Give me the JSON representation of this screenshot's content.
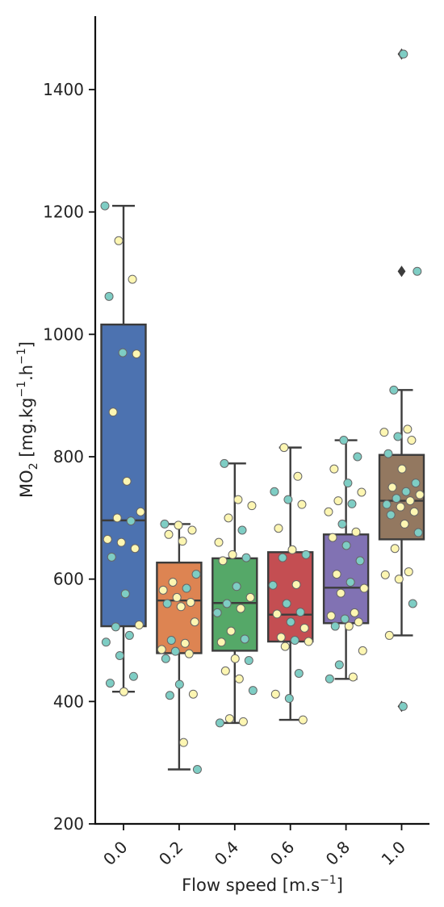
{
  "chart_data": {
    "type": "box",
    "xlabel": "Flow speed [m.s",
    "xlabel_sup": "−1",
    "xlabel_suffix": "]",
    "ylabel_prefix": "MO",
    "ylabel_sub": "2",
    "ylabel_mid1": " [mg.kg",
    "ylabel_sup1": "−1",
    "ylabel_mid2": ".h",
    "ylabel_sup2": "−1",
    "ylabel_suffix": "]",
    "ylim": [
      200,
      1520
    ],
    "yticks": [
      200,
      400,
      600,
      800,
      1000,
      1200,
      1400
    ],
    "categories": [
      "0.0",
      "0.2",
      "0.4",
      "0.6",
      "0.8",
      "1.0"
    ],
    "point_colors": {
      "teal": "#7ecdc4",
      "yellow": "#fdf6b2"
    },
    "boxes": [
      {
        "category": "0.0",
        "color": "#4c72b0",
        "q1": 523,
        "median": 696,
        "q3": 1016,
        "whisker_low": 416,
        "whisker_high": 1210,
        "outliers": [],
        "points": [
          {
            "y": 1210,
            "c": "teal"
          },
          {
            "y": 1153,
            "c": "yellow"
          },
          {
            "y": 1090,
            "c": "yellow"
          },
          {
            "y": 1062,
            "c": "teal"
          },
          {
            "y": 970,
            "c": "teal"
          },
          {
            "y": 968,
            "c": "yellow"
          },
          {
            "y": 873,
            "c": "yellow"
          },
          {
            "y": 760,
            "c": "yellow"
          },
          {
            "y": 710,
            "c": "yellow"
          },
          {
            "y": 700,
            "c": "yellow"
          },
          {
            "y": 695,
            "c": "teal"
          },
          {
            "y": 665,
            "c": "yellow"
          },
          {
            "y": 660,
            "c": "yellow"
          },
          {
            "y": 650,
            "c": "yellow"
          },
          {
            "y": 636,
            "c": "teal"
          },
          {
            "y": 576,
            "c": "teal"
          },
          {
            "y": 525,
            "c": "yellow"
          },
          {
            "y": 522,
            "c": "teal"
          },
          {
            "y": 508,
            "c": "teal"
          },
          {
            "y": 497,
            "c": "teal"
          },
          {
            "y": 475,
            "c": "teal"
          },
          {
            "y": 441,
            "c": "teal"
          },
          {
            "y": 430,
            "c": "teal"
          },
          {
            "y": 416,
            "c": "yellow"
          }
        ]
      },
      {
        "category": "0.2",
        "color": "#dd8452",
        "q1": 479,
        "median": 565,
        "q3": 627,
        "whisker_low": 289,
        "whisker_high": 690,
        "outliers": [],
        "points": [
          {
            "y": 690,
            "c": "teal"
          },
          {
            "y": 688,
            "c": "yellow"
          },
          {
            "y": 680,
            "c": "yellow"
          },
          {
            "y": 673,
            "c": "yellow"
          },
          {
            "y": 662,
            "c": "yellow"
          },
          {
            "y": 608,
            "c": "teal"
          },
          {
            "y": 595,
            "c": "yellow"
          },
          {
            "y": 585,
            "c": "teal"
          },
          {
            "y": 582,
            "c": "yellow"
          },
          {
            "y": 570,
            "c": "yellow"
          },
          {
            "y": 562,
            "c": "yellow"
          },
          {
            "y": 560,
            "c": "teal"
          },
          {
            "y": 555,
            "c": "yellow"
          },
          {
            "y": 530,
            "c": "yellow"
          },
          {
            "y": 500,
            "c": "teal"
          },
          {
            "y": 495,
            "c": "yellow"
          },
          {
            "y": 485,
            "c": "yellow"
          },
          {
            "y": 482,
            "c": "teal"
          },
          {
            "y": 478,
            "c": "yellow"
          },
          {
            "y": 470,
            "c": "teal"
          },
          {
            "y": 428,
            "c": "teal"
          },
          {
            "y": 412,
            "c": "yellow"
          },
          {
            "y": 410,
            "c": "teal"
          },
          {
            "y": 333,
            "c": "yellow"
          },
          {
            "y": 289,
            "c": "teal"
          }
        ]
      },
      {
        "category": "0.4",
        "color": "#55a868",
        "q1": 483,
        "median": 561,
        "q3": 634,
        "whisker_low": 365,
        "whisker_high": 789,
        "outliers": [],
        "points": [
          {
            "y": 789,
            "c": "teal"
          },
          {
            "y": 730,
            "c": "yellow"
          },
          {
            "y": 720,
            "c": "yellow"
          },
          {
            "y": 700,
            "c": "yellow"
          },
          {
            "y": 680,
            "c": "teal"
          },
          {
            "y": 660,
            "c": "yellow"
          },
          {
            "y": 640,
            "c": "yellow"
          },
          {
            "y": 635,
            "c": "teal"
          },
          {
            "y": 630,
            "c": "yellow"
          },
          {
            "y": 588,
            "c": "teal"
          },
          {
            "y": 570,
            "c": "yellow"
          },
          {
            "y": 560,
            "c": "teal"
          },
          {
            "y": 552,
            "c": "yellow"
          },
          {
            "y": 545,
            "c": "teal"
          },
          {
            "y": 515,
            "c": "yellow"
          },
          {
            "y": 502,
            "c": "teal"
          },
          {
            "y": 497,
            "c": "yellow"
          },
          {
            "y": 470,
            "c": "yellow"
          },
          {
            "y": 467,
            "c": "teal"
          },
          {
            "y": 450,
            "c": "yellow"
          },
          {
            "y": 437,
            "c": "yellow"
          },
          {
            "y": 418,
            "c": "teal"
          },
          {
            "y": 372,
            "c": "yellow"
          },
          {
            "y": 367,
            "c": "yellow"
          },
          {
            "y": 365,
            "c": "teal"
          }
        ]
      },
      {
        "category": "0.6",
        "color": "#c44e52",
        "q1": 498,
        "median": 542,
        "q3": 644,
        "whisker_low": 370,
        "whisker_high": 815,
        "outliers": [],
        "points": [
          {
            "y": 815,
            "c": "yellow"
          },
          {
            "y": 768,
            "c": "yellow"
          },
          {
            "y": 743,
            "c": "teal"
          },
          {
            "y": 730,
            "c": "teal"
          },
          {
            "y": 722,
            "c": "yellow"
          },
          {
            "y": 683,
            "c": "yellow"
          },
          {
            "y": 648,
            "c": "yellow"
          },
          {
            "y": 640,
            "c": "teal"
          },
          {
            "y": 635,
            "c": "teal"
          },
          {
            "y": 591,
            "c": "yellow"
          },
          {
            "y": 590,
            "c": "teal"
          },
          {
            "y": 560,
            "c": "teal"
          },
          {
            "y": 546,
            "c": "teal"
          },
          {
            "y": 543,
            "c": "yellow"
          },
          {
            "y": 530,
            "c": "teal"
          },
          {
            "y": 520,
            "c": "yellow"
          },
          {
            "y": 505,
            "c": "yellow"
          },
          {
            "y": 500,
            "c": "teal"
          },
          {
            "y": 498,
            "c": "yellow"
          },
          {
            "y": 490,
            "c": "yellow"
          },
          {
            "y": 446,
            "c": "teal"
          },
          {
            "y": 412,
            "c": "yellow"
          },
          {
            "y": 405,
            "c": "teal"
          },
          {
            "y": 370,
            "c": "yellow"
          }
        ]
      },
      {
        "category": "0.8",
        "color": "#8172b3",
        "q1": 528,
        "median": 586,
        "q3": 673,
        "whisker_low": 437,
        "whisker_high": 827,
        "outliers": [],
        "points": [
          {
            "y": 827,
            "c": "teal"
          },
          {
            "y": 800,
            "c": "teal"
          },
          {
            "y": 780,
            "c": "yellow"
          },
          {
            "y": 757,
            "c": "teal"
          },
          {
            "y": 742,
            "c": "yellow"
          },
          {
            "y": 728,
            "c": "yellow"
          },
          {
            "y": 723,
            "c": "teal"
          },
          {
            "y": 710,
            "c": "yellow"
          },
          {
            "y": 690,
            "c": "teal"
          },
          {
            "y": 677,
            "c": "yellow"
          },
          {
            "y": 668,
            "c": "yellow"
          },
          {
            "y": 655,
            "c": "teal"
          },
          {
            "y": 630,
            "c": "teal"
          },
          {
            "y": 608,
            "c": "yellow"
          },
          {
            "y": 595,
            "c": "teal"
          },
          {
            "y": 585,
            "c": "yellow"
          },
          {
            "y": 577,
            "c": "yellow"
          },
          {
            "y": 545,
            "c": "yellow"
          },
          {
            "y": 540,
            "c": "yellow"
          },
          {
            "y": 535,
            "c": "teal"
          },
          {
            "y": 530,
            "c": "yellow"
          },
          {
            "y": 523,
            "c": "teal"
          },
          {
            "y": 523,
            "c": "yellow"
          },
          {
            "y": 483,
            "c": "yellow"
          },
          {
            "y": 460,
            "c": "teal"
          },
          {
            "y": 440,
            "c": "yellow"
          },
          {
            "y": 437,
            "c": "teal"
          }
        ]
      },
      {
        "category": "1.0",
        "color": "#937860",
        "q1": 665,
        "median": 728,
        "q3": 803,
        "whisker_low": 508,
        "whisker_high": 909,
        "outliers": [
          1458,
          1103,
          392
        ],
        "points": [
          {
            "y": 1458,
            "c": "teal"
          },
          {
            "y": 1103,
            "c": "teal"
          },
          {
            "y": 909,
            "c": "teal"
          },
          {
            "y": 845,
            "c": "yellow"
          },
          {
            "y": 840,
            "c": "yellow"
          },
          {
            "y": 833,
            "c": "teal"
          },
          {
            "y": 827,
            "c": "yellow"
          },
          {
            "y": 805,
            "c": "teal"
          },
          {
            "y": 780,
            "c": "yellow"
          },
          {
            "y": 757,
            "c": "teal"
          },
          {
            "y": 750,
            "c": "yellow"
          },
          {
            "y": 743,
            "c": "teal"
          },
          {
            "y": 738,
            "c": "yellow"
          },
          {
            "y": 732,
            "c": "teal"
          },
          {
            "y": 728,
            "c": "yellow"
          },
          {
            "y": 722,
            "c": "teal"
          },
          {
            "y": 718,
            "c": "yellow"
          },
          {
            "y": 710,
            "c": "yellow"
          },
          {
            "y": 705,
            "c": "teal"
          },
          {
            "y": 690,
            "c": "yellow"
          },
          {
            "y": 676,
            "c": "teal"
          },
          {
            "y": 650,
            "c": "yellow"
          },
          {
            "y": 612,
            "c": "yellow"
          },
          {
            "y": 607,
            "c": "yellow"
          },
          {
            "y": 600,
            "c": "yellow"
          },
          {
            "y": 560,
            "c": "teal"
          },
          {
            "y": 508,
            "c": "yellow"
          },
          {
            "y": 392,
            "c": "teal"
          }
        ]
      }
    ]
  }
}
